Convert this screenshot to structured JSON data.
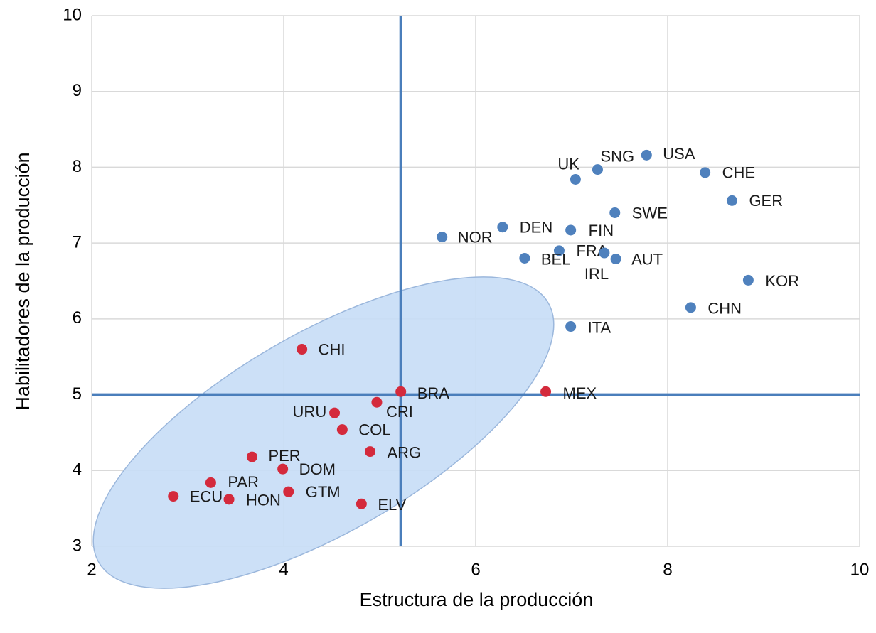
{
  "chart_data": {
    "type": "scatter",
    "xlabel": "Estructura de la producción",
    "ylabel": "Habilitadores de la producción",
    "xlim": [
      2,
      10
    ],
    "xticks": [
      2,
      4,
      6,
      8,
      10
    ],
    "ylim": [
      3,
      10
    ],
    "yticks": [
      3,
      4,
      5,
      6,
      7,
      8,
      9,
      10
    ],
    "grid": true,
    "vline": 5.22,
    "hline": 5,
    "ref_color": "#4a7ebb",
    "series": [
      {
        "color": "#4f81bd",
        "labels": [
          "USA",
          "SNG",
          "UK",
          "CHE",
          "GER",
          "SWE",
          "DEN",
          "FIN",
          "NOR",
          "FRA",
          "IRL",
          "BEL",
          "AUT",
          "KOR",
          "CHN",
          "ITA"
        ],
        "x": [
          7.78,
          7.27,
          7.04,
          8.39,
          8.67,
          7.45,
          6.28,
          6.99,
          5.65,
          6.87,
          7.34,
          6.51,
          7.46,
          8.84,
          8.24,
          6.99
        ],
        "values": [
          8.16,
          7.97,
          7.84,
          7.93,
          7.56,
          7.4,
          7.21,
          7.17,
          7.08,
          6.9,
          6.87,
          6.8,
          6.79,
          6.51,
          6.15,
          5.9
        ]
      },
      {
        "color": "#d42a3c",
        "labels": [
          "CHI",
          "BRA",
          "MEX",
          "CRI",
          "URU",
          "COL",
          "ARG",
          "PER",
          "DOM",
          "PAR",
          "GTM",
          "ECU",
          "HON",
          "ELV"
        ],
        "x": [
          4.19,
          5.22,
          6.73,
          4.97,
          4.53,
          4.61,
          4.9,
          3.67,
          3.99,
          3.24,
          4.05,
          2.85,
          3.43,
          4.81
        ],
        "values": [
          5.6,
          5.04,
          5.04,
          4.9,
          4.76,
          4.54,
          4.25,
          4.18,
          4.02,
          3.84,
          3.72,
          3.66,
          3.62,
          3.56
        ]
      }
    ]
  }
}
